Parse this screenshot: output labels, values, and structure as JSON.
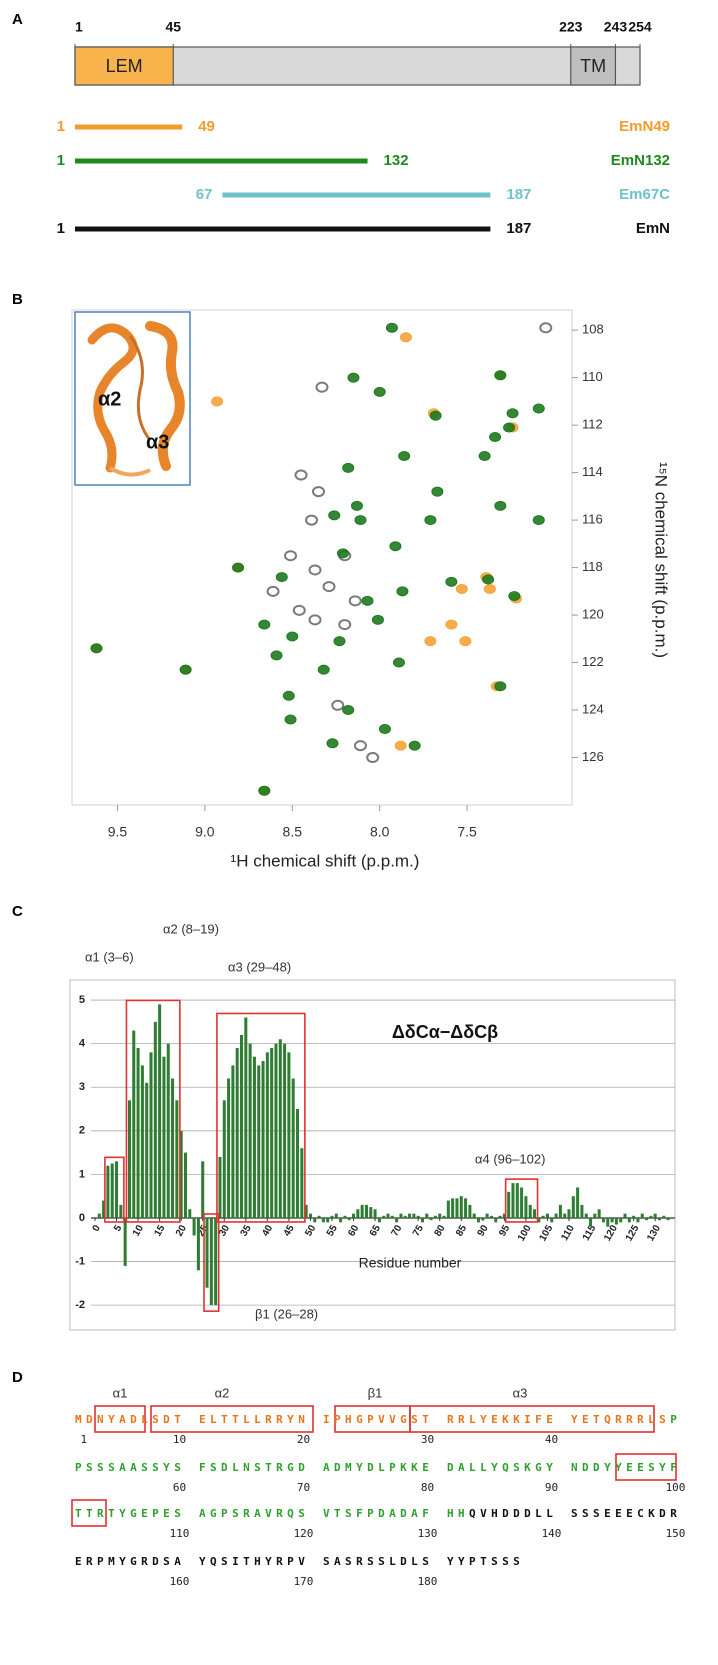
{
  "panel_a": {
    "label": "A",
    "scale": [
      1,
      254
    ],
    "ticks": [
      1,
      45,
      223,
      243,
      254
    ],
    "domains": [
      {
        "name": "LEM",
        "start": 1,
        "end": 45,
        "color": "#f9b34d"
      },
      {
        "name": "TM",
        "start": 223,
        "end": 243,
        "color": "#bfbfbf"
      }
    ],
    "constructs": [
      {
        "name": "EmN49",
        "start": 1,
        "end": 49,
        "color": "#f39c2b"
      },
      {
        "name": "EmN132",
        "start": 1,
        "end": 132,
        "color": "#1e8a1e"
      },
      {
        "name": "Em67C",
        "start": 67,
        "end": 187,
        "color": "#6ec3c9"
      },
      {
        "name": "EmN",
        "start": 1,
        "end": 187,
        "color": "#111111"
      }
    ]
  },
  "chart_data": [
    {
      "panel": "B",
      "type": "scatter",
      "xlabel": "¹H chemical shift (p.p.m.)",
      "ylabel": "¹⁵N chemical shift (p.p.m.)",
      "inset_labels": [
        "α2",
        "α3"
      ],
      "xlim": [
        9.76,
        6.9
      ],
      "ylim": [
        128,
        107.15
      ],
      "xticks": [
        9.5,
        {
          "value": 9,
          "label": "9.0"
        },
        8.5,
        {
          "value": 8,
          "label": "8.0"
        },
        7.5
      ],
      "yticks": [
        108,
        110,
        112,
        114,
        116,
        118,
        120,
        122,
        124,
        126
      ],
      "series": [
        {
          "color": "#7a7a7a",
          "x": [
            7.05,
            8.33,
            8.45,
            8.35,
            8.39,
            8.51,
            8.37,
            8.29,
            8.46,
            8.37,
            8.2,
            8.24,
            8.11,
            8.04,
            8.61,
            8.2,
            8.14
          ],
          "values": [
            107.9,
            110.4,
            114.1,
            114.8,
            116.0,
            117.5,
            118.1,
            118.8,
            119.8,
            120.2,
            120.4,
            123.8,
            125.5,
            126.0,
            119.0,
            117.5,
            119.4
          ]
        },
        {
          "color": "#f5a33a",
          "x": [
            9.62,
            9.11,
            8.93,
            8.81,
            7.85,
            7.69,
            7.31,
            7.24,
            7.39,
            7.53,
            7.37,
            7.22,
            8.66,
            7.59,
            7.51,
            7.88,
            7.71,
            7.33
          ],
          "values": [
            121.4,
            122.3,
            111.0,
            118.0,
            108.3,
            111.5,
            109.9,
            112.1,
            118.4,
            118.9,
            118.9,
            119.3,
            127.4,
            120.4,
            121.1,
            125.5,
            121.1,
            123.0
          ]
        },
        {
          "color": "#1f7a1f",
          "x": [
            7.93,
            8.15,
            8.0,
            7.31,
            7.68,
            7.24,
            7.26,
            7.34,
            7.09,
            7.4,
            7.86,
            8.18,
            7.67,
            8.13,
            8.26,
            8.11,
            7.71,
            7.31,
            7.09,
            8.81,
            8.56,
            8.21,
            7.91,
            7.38,
            7.59,
            7.87,
            8.07,
            7.23,
            8.66,
            8.5,
            8.23,
            8.01,
            9.62,
            9.11,
            8.32,
            7.89,
            8.59,
            8.52,
            8.18,
            7.31,
            8.51,
            7.97,
            8.27,
            7.8,
            8.66
          ],
          "values": [
            107.9,
            110.0,
            110.6,
            109.9,
            111.6,
            111.5,
            112.1,
            112.5,
            111.3,
            113.3,
            113.3,
            113.8,
            114.8,
            115.4,
            115.8,
            116.0,
            116.0,
            115.4,
            116.0,
            118.0,
            118.4,
            117.4,
            117.1,
            118.5,
            118.6,
            119.0,
            119.4,
            119.2,
            120.4,
            120.9,
            121.1,
            120.2,
            121.4,
            122.3,
            122.3,
            122.0,
            121.7,
            123.4,
            124.0,
            123.0,
            124.4,
            124.8,
            125.4,
            125.5,
            127.4
          ]
        }
      ]
    },
    {
      "panel": "C",
      "type": "bar",
      "title": "ΔδCα−ΔδCβ",
      "xlabel": "Residue number",
      "color": "#2e7d32",
      "grid": true,
      "xlim": [
        -5.8,
        134.6
      ],
      "ylim": [
        -2.57,
        5.46
      ],
      "xticks": [
        0,
        5,
        10,
        15,
        20,
        25,
        30,
        35,
        40,
        45,
        50,
        55,
        60,
        65,
        70,
        75,
        80,
        85,
        90,
        95,
        100,
        105,
        110,
        115,
        120,
        125,
        130
      ],
      "yticks": [
        -2,
        -1,
        0,
        1,
        2,
        3,
        4,
        5
      ],
      "x": [
        1,
        2,
        3,
        4,
        5,
        6,
        7,
        8,
        9,
        10,
        11,
        12,
        13,
        14,
        15,
        16,
        17,
        18,
        19,
        20,
        21,
        22,
        23,
        24,
        25,
        26,
        27,
        28,
        29,
        30,
        31,
        32,
        33,
        34,
        35,
        36,
        37,
        38,
        39,
        40,
        41,
        42,
        43,
        44,
        45,
        46,
        47,
        48,
        49,
        50,
        51,
        52,
        53,
        54,
        55,
        56,
        57,
        58,
        59,
        60,
        61,
        62,
        63,
        64,
        65,
        66,
        67,
        68,
        69,
        70,
        71,
        72,
        73,
        74,
        75,
        76,
        77,
        78,
        79,
        80,
        81,
        82,
        83,
        84,
        85,
        86,
        87,
        88,
        89,
        90,
        91,
        92,
        93,
        94,
        95,
        96,
        97,
        98,
        99,
        100,
        101,
        102,
        103,
        104,
        105,
        106,
        107,
        108,
        109,
        110,
        111,
        112,
        113,
        114,
        115,
        116,
        117,
        118,
        119,
        120,
        121,
        122,
        123,
        124,
        125,
        126,
        127,
        128,
        129,
        130,
        131,
        132,
        133
      ],
      "values": [
        0.1,
        0.4,
        1.2,
        1.25,
        1.3,
        0.3,
        -1.1,
        2.7,
        4.3,
        3.9,
        3.5,
        3.1,
        3.8,
        4.5,
        4.9,
        3.7,
        4.0,
        3.2,
        2.7,
        2.0,
        1.5,
        0.2,
        -0.4,
        -1.2,
        1.3,
        -1.6,
        -2.0,
        -2.0,
        1.4,
        2.7,
        3.2,
        3.5,
        3.9,
        4.2,
        4.6,
        4.0,
        3.7,
        3.5,
        3.6,
        3.8,
        3.9,
        4.0,
        4.1,
        4.0,
        3.8,
        3.2,
        2.5,
        1.6,
        0.3,
        0.1,
        -0.1,
        0.05,
        -0.1,
        -0.1,
        0.05,
        0.1,
        -0.1,
        0.05,
        -0.05,
        0.1,
        0.2,
        0.3,
        0.3,
        0.25,
        0.2,
        -0.1,
        0.05,
        0.1,
        0.05,
        -0.1,
        0.1,
        0.05,
        0.1,
        0.1,
        0.05,
        -0.1,
        0.1,
        -0.05,
        0.05,
        0.1,
        0.05,
        0.4,
        0.45,
        0.45,
        0.5,
        0.45,
        0.3,
        0.1,
        -0.1,
        -0.05,
        0.1,
        0.05,
        -0.1,
        0.05,
        0.1,
        0.6,
        0.8,
        0.8,
        0.7,
        0.5,
        0.3,
        0.2,
        -0.1,
        0.05,
        0.1,
        -0.1,
        0.1,
        0.3,
        0.1,
        0.2,
        0.5,
        0.7,
        0.3,
        0.1,
        -0.2,
        0.1,
        0.2,
        -0.1,
        -0.2,
        -0.1,
        -0.15,
        -0.1,
        0.1,
        -0.1,
        0.05,
        -0.1,
        0.1,
        -0.05,
        0.05,
        0.1,
        -0.05,
        0.05,
        -0.05
      ],
      "regions": [
        {
          "label": "α1 (3–6)",
          "start": 3,
          "end": 6
        },
        {
          "label": "α2 (8–19)",
          "start": 8,
          "end": 19
        },
        {
          "label": "β1 (26–28)",
          "start": 26,
          "end": 28
        },
        {
          "label": "α3 (29–48)",
          "start": 29,
          "end": 48
        },
        {
          "label": "α4 (96–102)",
          "start": 96,
          "end": 102
        }
      ]
    }
  ],
  "panel_d": {
    "label": "D",
    "structure_labels": [
      "α1",
      "α2",
      "β1",
      "α3"
    ],
    "rows": [
      {
        "blocks": [
          [
            {
              "text": "MDNYADLSDT",
              "color": "#e8741c"
            }
          ],
          [
            {
              "text": "ELTTLLRRYN",
              "color": "#e8741c"
            }
          ],
          [
            {
              "text": "IPHGPVVGST",
              "color": "#e8741c"
            }
          ],
          [
            {
              "text": "RRLYEKKIFE",
              "color": "#e8741c"
            }
          ],
          [
            {
              "text": "YETQRRRLS",
              "color": "#e8741c"
            },
            {
              "text": "P",
              "color": "#2fa02f"
            }
          ]
        ],
        "numbers": [
          1,
          10,
          20,
          30,
          40
        ]
      },
      {
        "blocks": [
          [
            {
              "text": "PSSSAASSYS",
              "color": "#2fa02f"
            }
          ],
          [
            {
              "text": "FSDLNSTRGD",
              "color": "#2fa02f"
            }
          ],
          [
            {
              "text": "ADMYDLPKKE",
              "color": "#2fa02f"
            }
          ],
          [
            {
              "text": "DALLYQSKGY",
              "color": "#2fa02f"
            }
          ],
          [
            {
              "text": "NDDYYEESYF",
              "color": "#2fa02f"
            }
          ]
        ],
        "numbers": [
          60,
          70,
          80,
          90,
          100
        ]
      },
      {
        "blocks": [
          [
            {
              "text": "TTRTYGEPES",
              "color": "#2fa02f"
            }
          ],
          [
            {
              "text": "AGPSRAVRQS",
              "color": "#2fa02f"
            }
          ],
          [
            {
              "text": "VTSFPDADAF",
              "color": "#2fa02f"
            }
          ],
          [
            {
              "text": "HH",
              "color": "#2fa02f"
            },
            {
              "text": "QVHDDDLL",
              "color": "#111111"
            }
          ],
          [
            {
              "text": "SSSEEECKDR",
              "color": "#111111"
            }
          ]
        ],
        "numbers": [
          110,
          120,
          130,
          140,
          150
        ]
      },
      {
        "blocks": [
          [
            {
              "text": "ERPMYGRDSA",
              "color": "#111111"
            }
          ],
          [
            {
              "text": "YQSITHYRPV",
              "color": "#111111"
            }
          ],
          [
            {
              "text": "SASRSSLDLS",
              "color": "#111111"
            }
          ],
          [
            {
              "text": "YYPTSSS",
              "color": "#111111"
            }
          ]
        ],
        "numbers": [
          160,
          170,
          180
        ]
      }
    ]
  }
}
